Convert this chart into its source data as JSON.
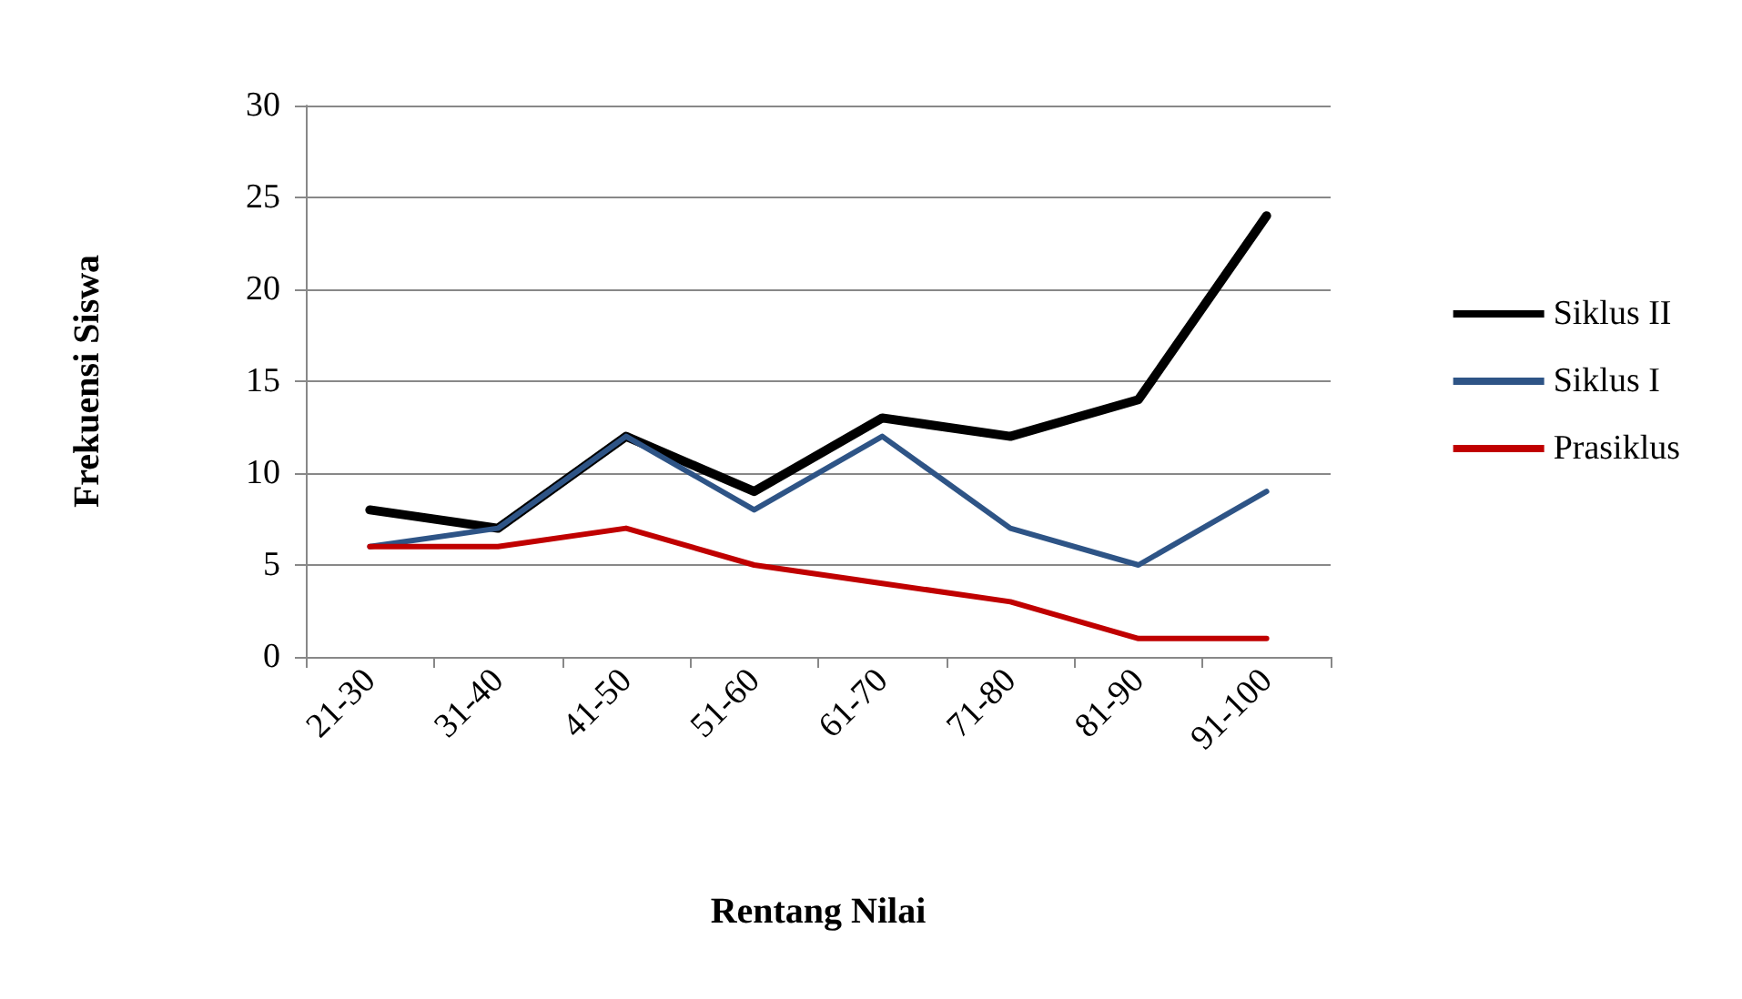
{
  "chart_data": {
    "type": "line",
    "xlabel": "Rentang Nilai",
    "ylabel": "Frekuensi Siswa",
    "categories": [
      "21-30",
      "31-40",
      "41-50",
      "51-60",
      "61-70",
      "71-80",
      "81-90",
      "91-100"
    ],
    "series": [
      {
        "name": "Siklus II",
        "color": "#000000",
        "values": [
          8,
          7,
          12,
          9,
          13,
          12,
          14,
          24
        ]
      },
      {
        "name": "Siklus I",
        "color": "#2e5486",
        "values": [
          6,
          7,
          12,
          8,
          12,
          7,
          5,
          9
        ]
      },
      {
        "name": "Prasiklus",
        "color": "#c00000",
        "values": [
          6,
          6,
          7,
          5,
          4,
          3,
          1,
          1
        ]
      }
    ],
    "ylim": [
      0,
      30
    ],
    "yticks": [
      0,
      5,
      10,
      15,
      20,
      25,
      30
    ],
    "grid": "y",
    "legend": "right",
    "marker": "none",
    "line_style": "solid"
  }
}
